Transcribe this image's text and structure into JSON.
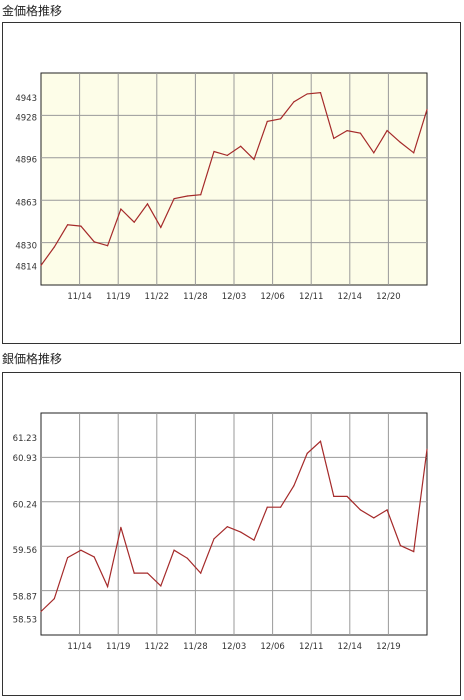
{
  "charts": {
    "gold": {
      "title": "金価格推移"
    },
    "silver": {
      "title": "銀価格推移"
    }
  },
  "colors": {
    "line": "#a52a2a",
    "grid": "#9a9a9a",
    "gold_bg": "#fdfde8",
    "silver_bg": "#ffffff"
  },
  "chart_data": [
    {
      "type": "line",
      "title": "金価格推移",
      "xlabel": "",
      "ylabel": "",
      "ylim": [
        4800,
        4962
      ],
      "x_tick_labels": [
        "11/14",
        "11/19",
        "11/22",
        "11/28",
        "12/03",
        "12/06",
        "12/11",
        "12/14",
        "12/20"
      ],
      "y_tick_labels": [
        "4943",
        "4928",
        "4896",
        "4863",
        "4830",
        "4814"
      ],
      "y_tick_values": [
        4943,
        4928,
        4896,
        4863,
        4830,
        4814
      ],
      "grid": true,
      "values": [
        4815,
        4829,
        4846,
        4845,
        4833,
        4830,
        4858,
        4848,
        4862,
        4844,
        4866,
        4868,
        4869,
        4902,
        4899,
        4906,
        4896,
        4925,
        4927,
        4940,
        4946,
        4947,
        4912,
        4918,
        4916,
        4901,
        4918,
        4909,
        4901,
        4934
      ]
    },
    {
      "type": "line",
      "title": "銀価格推移",
      "xlabel": "",
      "ylabel": "",
      "ylim": [
        58.3,
        61.6
      ],
      "x_tick_labels": [
        "11/14",
        "11/19",
        "11/22",
        "11/28",
        "12/03",
        "12/06",
        "12/11",
        "12/14",
        "12/19"
      ],
      "y_tick_labels": [
        "61.23",
        "60.93",
        "60.24",
        "59.56",
        "58.87",
        "58.53"
      ],
      "y_tick_values": [
        61.23,
        60.93,
        60.24,
        59.56,
        58.87,
        58.53
      ],
      "grid": true,
      "values": [
        58.65,
        58.84,
        59.45,
        59.56,
        59.46,
        59.02,
        59.9,
        59.22,
        59.22,
        59.03,
        59.56,
        59.44,
        59.22,
        59.73,
        59.91,
        59.83,
        59.71,
        60.2,
        60.2,
        60.52,
        61.0,
        61.18,
        60.36,
        60.36,
        60.16,
        60.04,
        60.16,
        59.63,
        59.54,
        61.06
      ]
    }
  ]
}
